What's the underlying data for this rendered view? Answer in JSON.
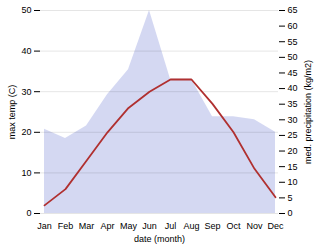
{
  "chart_data": {
    "type": "line",
    "xlabel": "date (month)",
    "ylabel": "max temp (C)",
    "y2label": "med. precipitation (kg/m2)",
    "categories": [
      "Jan",
      "Feb",
      "Mar",
      "Apr",
      "May",
      "Jun",
      "Jul",
      "Aug",
      "Sep",
      "Oct",
      "Nov",
      "Dec"
    ],
    "series": [
      {
        "type": "area",
        "axis": "y2",
        "color": "#b0b8e8",
        "values": [
          27,
          24,
          28,
          38,
          46,
          65,
          43,
          43,
          31,
          31,
          30,
          26
        ]
      },
      {
        "type": "line",
        "color": "#b03030",
        "values": [
          2,
          6,
          13,
          20,
          26,
          30,
          33,
          33,
          27,
          20,
          11,
          4
        ]
      }
    ],
    "ylim": [
      0,
      50
    ],
    "yticks": [
      0,
      10,
      20,
      30,
      40,
      50
    ],
    "y2lim": [
      0,
      65
    ],
    "y2ticks": [
      0,
      5,
      10,
      15,
      20,
      25,
      30,
      35,
      40,
      45,
      50,
      55,
      60,
      65
    ],
    "grid": true
  }
}
